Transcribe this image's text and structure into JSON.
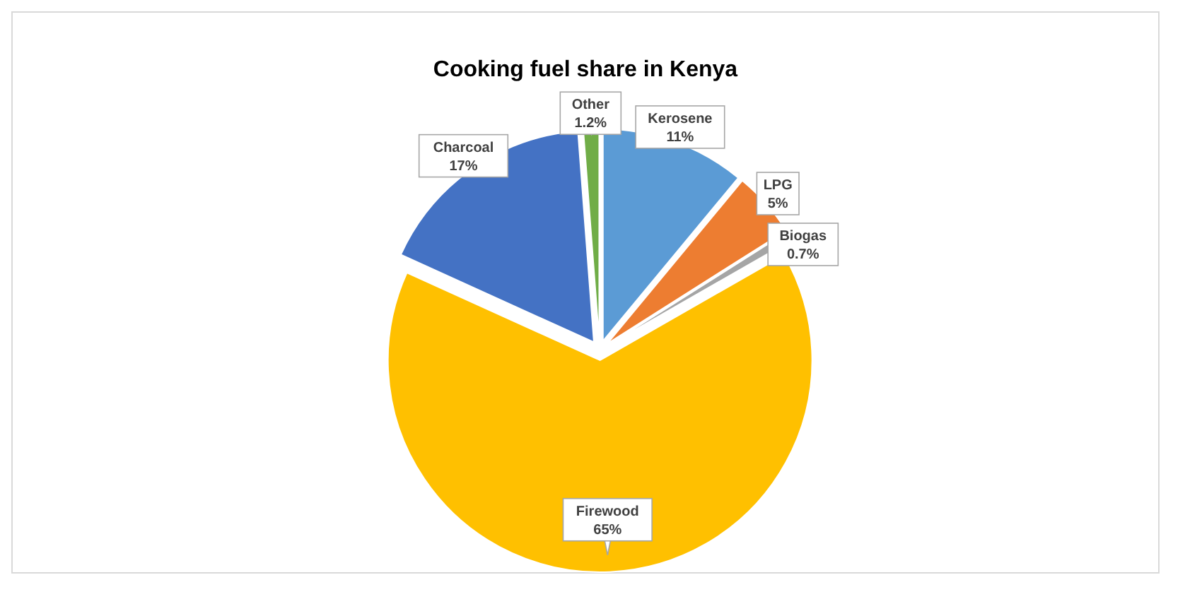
{
  "chart_data": {
    "type": "pie",
    "title": "Cooking fuel share in Kenya",
    "categories": [
      "Kerosene",
      "LPG",
      "Biogas",
      "Firewood",
      "Charcoal",
      "Other"
    ],
    "values": [
      11,
      5,
      0.7,
      65,
      17,
      1.2
    ],
    "colors": [
      "#5b9bd5",
      "#ed7d31",
      "#a5a5a5",
      "#ffc000",
      "#4472c4",
      "#70ad47"
    ],
    "value_labels": [
      "11%",
      "5%",
      "0.7%",
      "65%",
      "17%",
      "1.2%"
    ]
  }
}
